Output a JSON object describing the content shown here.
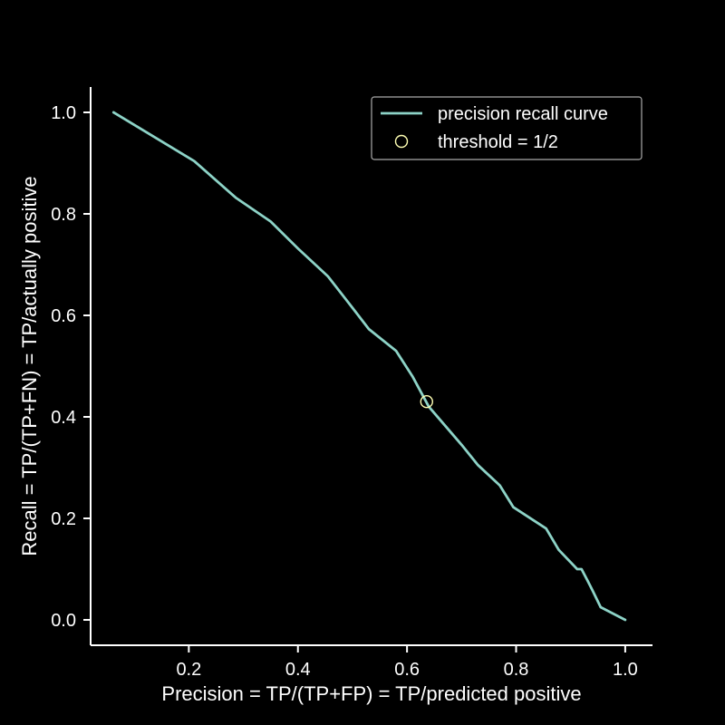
{
  "chart_data": {
    "type": "line",
    "xlabel": "Precision = TP/(TP+FP) = TP/predicted positive",
    "ylabel": "Recall = TP/(TP+FN) = TP/actually positive",
    "xlim": [
      0.02,
      1.05
    ],
    "ylim": [
      -0.05,
      1.05
    ],
    "xticks": [
      "0.2",
      "0.4",
      "0.6",
      "0.8",
      "1.0"
    ],
    "yticks": [
      "0.0",
      "0.2",
      "0.4",
      "0.6",
      "0.8",
      "1.0"
    ],
    "grid": false,
    "legend_position": "top-right",
    "series": [
      {
        "name": "precision recall curve",
        "color": "#8dd3c7",
        "x": [
          0.062,
          0.21,
          0.286,
          0.35,
          0.4,
          0.455,
          0.5,
          0.53,
          0.58,
          0.61,
          0.64,
          0.7,
          0.73,
          0.77,
          0.795,
          0.855,
          0.878,
          0.912,
          0.92,
          0.932,
          0.94,
          0.955,
          1.0
        ],
        "y": [
          1.0,
          0.904,
          0.832,
          0.785,
          0.732,
          0.677,
          0.615,
          0.573,
          0.53,
          0.48,
          0.42,
          0.345,
          0.305,
          0.265,
          0.222,
          0.18,
          0.138,
          0.1,
          0.1,
          0.075,
          0.058,
          0.025,
          0.0
        ]
      }
    ],
    "markers": [
      {
        "name": "threshold = 1/2",
        "x": 0.636,
        "y": 0.43,
        "edgecolor": "#ffffb3"
      }
    ]
  }
}
